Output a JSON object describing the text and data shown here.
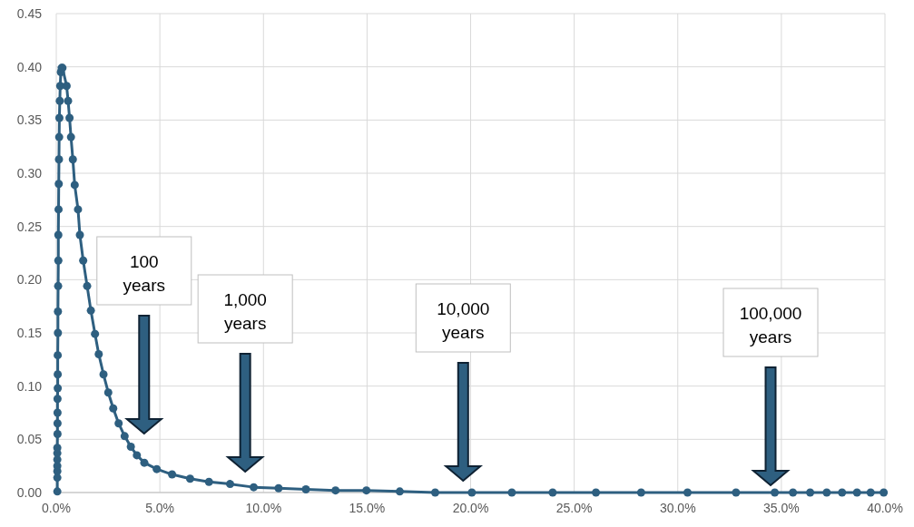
{
  "chart_data": {
    "type": "line",
    "marker": "circle",
    "grid": true,
    "line_style": "solid",
    "xlim": [
      0,
      40
    ],
    "ylim": [
      0,
      0.45
    ],
    "xticks": [
      {
        "value": 0,
        "label": "0.0%"
      },
      {
        "value": 5,
        "label": "5.0%"
      },
      {
        "value": 10,
        "label": "10.0%"
      },
      {
        "value": 15,
        "label": "15.0%"
      },
      {
        "value": 20,
        "label": "20.0%"
      },
      {
        "value": 25,
        "label": "25.0%"
      },
      {
        "value": 30,
        "label": "30.0%"
      },
      {
        "value": 35,
        "label": "35.0%"
      },
      {
        "value": 40,
        "label": "40.0%"
      }
    ],
    "yticks": [
      {
        "value": 0,
        "label": "0.00"
      },
      {
        "value": 0.05,
        "label": "0.05"
      },
      {
        "value": 0.1,
        "label": "0.10"
      },
      {
        "value": 0.15,
        "label": "0.15"
      },
      {
        "value": 0.2,
        "label": "0.20"
      },
      {
        "value": 0.25,
        "label": "0.25"
      },
      {
        "value": 0.3,
        "label": "0.30"
      },
      {
        "value": 0.35,
        "label": "0.35"
      },
      {
        "value": 0.4,
        "label": "0.40"
      },
      {
        "value": 0.45,
        "label": "0.45"
      }
    ],
    "series": [
      {
        "color": "#2e5f80",
        "x": [
          0.05,
          0.05,
          0.05,
          0.05,
          0.05,
          0.05,
          0.05,
          0.06,
          0.06,
          0.06,
          0.06,
          0.07,
          0.07,
          0.07,
          0.08,
          0.08,
          0.09,
          0.1,
          0.1,
          0.11,
          0.12,
          0.13,
          0.14,
          0.15,
          0.17,
          0.19,
          0.22,
          0.26,
          0.3,
          0.5,
          0.57,
          0.64,
          0.71,
          0.8,
          0.89,
          1.05,
          1.14,
          1.3,
          1.49,
          1.67,
          1.87,
          2.05,
          2.28,
          2.51,
          2.75,
          3.01,
          3.3,
          3.6,
          3.89,
          4.25,
          4.85,
          5.59,
          6.46,
          7.37,
          8.39,
          9.53,
          10.73,
          12.05,
          13.48,
          14.97,
          16.58,
          18.29,
          20.06,
          21.99,
          23.96,
          26.05,
          28.23,
          30.47,
          32.81,
          34.68,
          35.56,
          36.39,
          37.19,
          37.93,
          38.65,
          39.31,
          39.94
        ],
        "values": [
          0.001,
          0.014,
          0.02,
          0.025,
          0.031,
          0.037,
          0.042,
          0.055,
          0.065,
          0.075,
          0.088,
          0.098,
          0.111,
          0.129,
          0.15,
          0.17,
          0.194,
          0.218,
          0.242,
          0.266,
          0.29,
          0.313,
          0.334,
          0.352,
          0.368,
          0.382,
          0.395,
          0.399,
          0.399,
          0.382,
          0.368,
          0.352,
          0.334,
          0.313,
          0.289,
          0.266,
          0.242,
          0.218,
          0.194,
          0.171,
          0.149,
          0.13,
          0.111,
          0.094,
          0.079,
          0.065,
          0.053,
          0.043,
          0.035,
          0.028,
          0.022,
          0.017,
          0.013,
          0.01,
          0.008,
          0.005,
          0.004,
          0.003,
          0.002,
          0.002,
          0.001,
          0,
          0,
          0,
          0,
          0,
          0,
          0,
          0,
          0,
          0,
          0,
          0,
          0,
          0,
          0,
          0
        ]
      }
    ],
    "annotations": [
      "100\nyears",
      "1,000\nyears",
      "10,000\nyears",
      "100,000\nyears"
    ]
  }
}
